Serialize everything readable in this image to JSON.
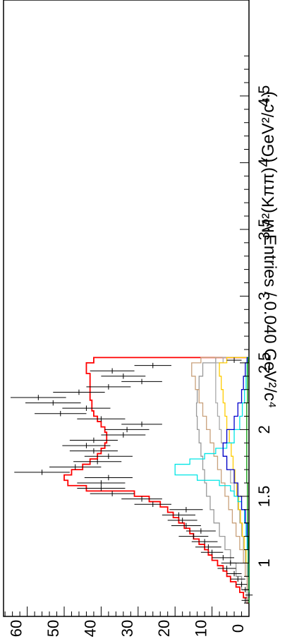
{
  "chart_data": {
    "type": "histogram",
    "orientation": "rotated 90 degrees clockwise",
    "xlabel": "M²(Kππ) (GeV²/c⁴)",
    "ylabel": "Entries / 0.040 GeV²/c⁴",
    "x_ticks": [
      "1",
      "1.5",
      "2",
      "2.5",
      "3",
      "3.5",
      "4",
      "4.5"
    ],
    "y_ticks": [
      "0",
      "10",
      "20",
      "30",
      "40",
      "50",
      "60"
    ],
    "xlim": [
      0.6,
      4.9
    ],
    "ylim": [
      0,
      66
    ],
    "bin_width": 0.04,
    "data_points": {
      "x": [
        0.72,
        0.76,
        0.8,
        0.84,
        0.88,
        0.92,
        0.96,
        1.0,
        1.04,
        1.08,
        1.12,
        1.16,
        1.2,
        1.24,
        1.28,
        1.32,
        1.36,
        1.4,
        1.44,
        1.48,
        1.52,
        1.56,
        1.6,
        1.64,
        1.68,
        1.72,
        1.76,
        1.8,
        1.84,
        1.88,
        1.92,
        1.96,
        2.0,
        2.04,
        2.08,
        2.12,
        2.16,
        2.2,
        2.24,
        2.28,
        2.32,
        2.36,
        2.4,
        2.44,
        2.48,
        2.52
      ],
      "y": [
        1,
        0,
        1,
        2,
        3,
        4,
        6,
        5,
        7,
        10,
        11,
        12,
        15,
        13,
        17,
        18,
        19,
        17,
        26,
        29,
        37,
        40,
        40,
        38,
        56,
        47,
        41,
        38,
        42,
        44,
        42,
        34,
        33,
        29,
        40,
        51,
        44,
        53,
        57,
        46,
        38,
        29,
        34,
        37,
        26,
        4
      ],
      "err": [
        1,
        1,
        1,
        1.5,
        2,
        2,
        2.5,
        2.5,
        3,
        3,
        3.5,
        3.5,
        4,
        4,
        4,
        4,
        4.5,
        4.5,
        5,
        5.5,
        6,
        6.5,
        6.5,
        6.5,
        7.5,
        7,
        6.5,
        6.5,
        6.5,
        6.5,
        6.5,
        6,
        6,
        5.5,
        6.5,
        7,
        6.5,
        7.5,
        7.5,
        7,
        6,
        5.5,
        6,
        6,
        5,
        2
      ]
    },
    "series": [
      {
        "color": "#ff0000",
        "x": [
          0.7,
          0.74,
          0.78,
          0.82,
          0.86,
          0.9,
          0.94,
          0.98,
          1.02,
          1.06,
          1.1,
          1.14,
          1.18,
          1.22,
          1.26,
          1.3,
          1.34,
          1.38,
          1.42,
          1.46,
          1.5,
          1.54,
          1.58,
          1.62,
          1.66,
          1.7,
          1.74,
          1.78,
          1.82,
          1.86,
          1.9,
          1.94,
          1.98,
          2.02,
          2.06,
          2.1,
          2.14,
          2.18,
          2.22,
          2.26,
          2.3,
          2.34,
          2.38,
          2.42,
          2.46,
          2.5,
          2.54
        ],
        "y": [
          0.5,
          1.5,
          2.5,
          3.5,
          5,
          6,
          7,
          8.5,
          10,
          11,
          12,
          13.5,
          15,
          16,
          17.5,
          19,
          20.5,
          22,
          24,
          27,
          31,
          44,
          49,
          50,
          48,
          45,
          43,
          41,
          40,
          39,
          38.5,
          38.5,
          39,
          40,
          41,
          42,
          42.5,
          42.5,
          43,
          43,
          43,
          43,
          43,
          44,
          44,
          42,
          2
        ]
      },
      {
        "color": "#999999",
        "x": [
          0.7,
          0.8,
          0.9,
          1.0,
          1.1,
          1.2,
          1.3,
          1.4,
          1.5,
          1.6,
          1.7,
          1.8,
          1.9,
          2.0,
          2.1,
          2.2,
          2.3,
          2.4,
          2.5,
          2.54
        ],
        "y": [
          0.5,
          2,
          3.5,
          5,
          6.5,
          8,
          9.5,
          10.5,
          11.5,
          12,
          12.5,
          13,
          13.5,
          14,
          14.2,
          14,
          13.5,
          12.5,
          9,
          0
        ]
      },
      {
        "color": "#c8a07a",
        "x": [
          0.7,
          0.8,
          0.9,
          1.0,
          1.1,
          1.2,
          1.3,
          1.4,
          1.5,
          1.6,
          1.7,
          1.8,
          1.9,
          2.0,
          2.1,
          2.2,
          2.3,
          2.4,
          2.5,
          2.54
        ],
        "y": [
          0,
          0.5,
          1,
          1.5,
          2.5,
          3.5,
          4.5,
          5.5,
          6.5,
          7.5,
          8.5,
          9.5,
          10.5,
          11.5,
          12.5,
          13.5,
          14.5,
          15.5,
          13,
          0
        ]
      },
      {
        "color": "#aaaaaa",
        "x": [
          0.7,
          0.8,
          0.9,
          1.0,
          1.1,
          1.2,
          1.3,
          1.4,
          1.5,
          1.6,
          1.7,
          1.8,
          1.9,
          2.0,
          2.1,
          2.2,
          2.3,
          2.4,
          2.5,
          2.54
        ],
        "y": [
          0,
          0.2,
          0.5,
          1,
          1.5,
          2,
          2.5,
          3,
          4,
          5,
          6,
          7,
          7.5,
          8,
          8.5,
          9,
          9,
          9,
          7,
          0
        ]
      },
      {
        "color": "#ffcc00",
        "x": [
          0.7,
          0.8,
          0.9,
          1.0,
          1.1,
          1.2,
          1.3,
          1.4,
          1.5,
          1.6,
          1.7,
          1.8,
          1.9,
          2.0,
          2.1,
          2.2,
          2.3,
          2.4,
          2.5,
          2.54
        ],
        "y": [
          0,
          0,
          0.3,
          0.8,
          1.3,
          1.8,
          2.3,
          2.8,
          3.3,
          3.8,
          4.3,
          4.8,
          5.3,
          6,
          6.5,
          7,
          7.5,
          8,
          6,
          0
        ]
      },
      {
        "color": "#00e5e5",
        "x": [
          0.7,
          0.9,
          1.1,
          1.2,
          1.3,
          1.4,
          1.46,
          1.5,
          1.54,
          1.58,
          1.62,
          1.66,
          1.7,
          1.74,
          1.78,
          1.82,
          1.86,
          1.9,
          2.0,
          2.1,
          2.2,
          2.3,
          2.4,
          2.54
        ],
        "y": [
          0,
          0.2,
          0.5,
          0.8,
          1.2,
          2,
          3,
          4,
          5,
          8,
          14,
          20,
          20,
          16,
          12,
          9,
          6,
          4,
          2.5,
          1.8,
          1.2,
          0.8,
          0.5,
          0
        ]
      },
      {
        "color": "#0000cc",
        "x": [
          0.7,
          0.9,
          1.1,
          1.2,
          1.3,
          1.4,
          1.5,
          1.6,
          1.7,
          1.8,
          1.9,
          2.0,
          2.1,
          2.2,
          2.3,
          2.4,
          2.5,
          2.54
        ],
        "y": [
          0,
          0.1,
          0.3,
          0.5,
          1,
          2,
          3,
          4,
          6,
          7,
          6,
          4,
          3,
          2,
          1.5,
          1,
          0.5,
          0
        ]
      },
      {
        "color": "#009900",
        "x": [
          0.7,
          1.0,
          1.3,
          1.6,
          1.9,
          2.2,
          2.5,
          2.54
        ],
        "y": [
          0,
          0.2,
          0.4,
          0.6,
          0.6,
          0.4,
          0.2,
          0
        ]
      }
    ]
  }
}
